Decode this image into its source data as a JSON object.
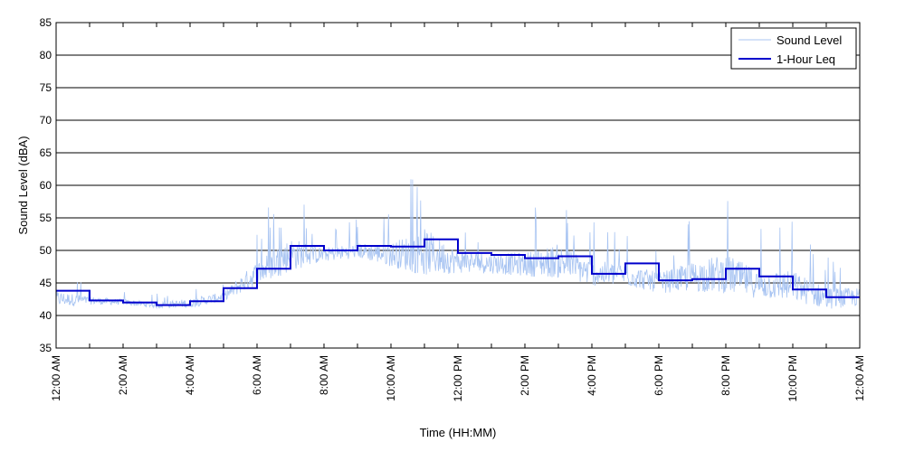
{
  "chart_data": {
    "type": "line",
    "title": "",
    "xlabel": "Time (HH:MM)",
    "ylabel": "Sound Level (dBA)",
    "ylim": [
      35,
      85
    ],
    "xlim_hours": [
      0,
      24
    ],
    "y_ticks": [
      35,
      40,
      45,
      50,
      55,
      60,
      65,
      70,
      75,
      80,
      85
    ],
    "x_tick_labels": [
      "12:00 AM",
      "2:00 AM",
      "4:00 AM",
      "6:00 AM",
      "8:00 AM",
      "10:00 AM",
      "12:00 PM",
      "2:00 PM",
      "4:00 PM",
      "6:00 PM",
      "8:00 PM",
      "10:00 PM",
      "12:00 AM"
    ],
    "grid": "horizontal",
    "legend_position": "top-right",
    "colors": {
      "sound_level": "#a8c4f2",
      "leq": "#0000cc"
    },
    "series": [
      {
        "name": "Sound Level",
        "kind": "envelope",
        "hours": [
          0,
          1,
          2,
          3,
          4,
          5,
          6,
          7,
          8,
          9,
          10,
          11,
          12,
          13,
          14,
          15,
          16,
          17,
          18,
          19,
          20,
          21,
          22,
          23,
          24
        ],
        "low": [
          41,
          41.5,
          41.5,
          41,
          41,
          42,
          44,
          46,
          48,
          48.5,
          47,
          45,
          46,
          46,
          45.5,
          45,
          44,
          44,
          43,
          43,
          42.5,
          42,
          41.5,
          40.5,
          41
        ],
        "high": [
          48,
          45,
          44,
          43.5,
          45,
          46,
          55,
          61,
          54,
          55,
          57.5,
          66,
          56,
          55,
          56,
          60,
          55,
          54,
          52,
          56,
          60,
          54,
          55,
          50,
          49
        ]
      },
      {
        "name": "1-Hour Leq",
        "kind": "step",
        "hours": [
          0,
          1,
          2,
          3,
          4,
          5,
          6,
          7,
          8,
          9,
          10,
          11,
          12,
          13,
          14,
          15,
          16,
          17,
          18,
          19,
          20,
          21,
          22,
          23
        ],
        "values": [
          43.8,
          42.3,
          42.0,
          41.6,
          42.2,
          44.2,
          47.2,
          50.7,
          50.0,
          50.7,
          50.6,
          51.7,
          49.6,
          49.3,
          48.8,
          49.1,
          46.4,
          48.0,
          45.4,
          45.6,
          47.2,
          46.0,
          44.0,
          42.8
        ]
      }
    ]
  }
}
